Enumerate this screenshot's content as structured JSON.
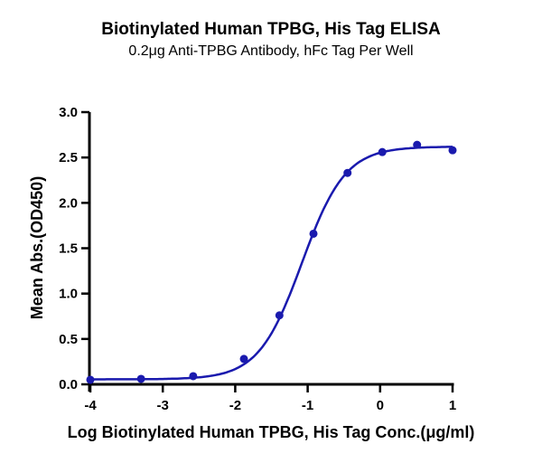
{
  "chart_data": {
    "type": "line",
    "title": "Biotinylated Human TPBG, His Tag ELISA",
    "subtitle": "0.2μg Anti-TPBG Antibody, hFc Tag Per Well",
    "xlabel": "Log Biotinylated Human TPBG, His Tag Conc.(μg/ml)",
    "ylabel": "Mean Abs.(OD450)",
    "xlim": [
      -4,
      1
    ],
    "ylim": [
      0,
      3.0
    ],
    "xticks": [
      "-4",
      "-3",
      "-2",
      "-1",
      "0",
      "1"
    ],
    "yticks": [
      "0.0",
      "0.5",
      "1.0",
      "1.5",
      "2.0",
      "2.5",
      "3.0"
    ],
    "grid": false,
    "legend": null,
    "series": [
      {
        "name": "Biotinylated Human TPBG, His Tag",
        "color": "#1a1aae",
        "fit": "sigmoidal 4PL",
        "x": [
          -4.0,
          -3.3,
          -2.58,
          -1.88,
          -1.39,
          -0.92,
          -0.45,
          0.03,
          0.51,
          1.0
        ],
        "y": [
          0.05,
          0.06,
          0.09,
          0.28,
          0.76,
          1.66,
          2.33,
          2.56,
          2.64,
          2.58
        ]
      }
    ]
  }
}
